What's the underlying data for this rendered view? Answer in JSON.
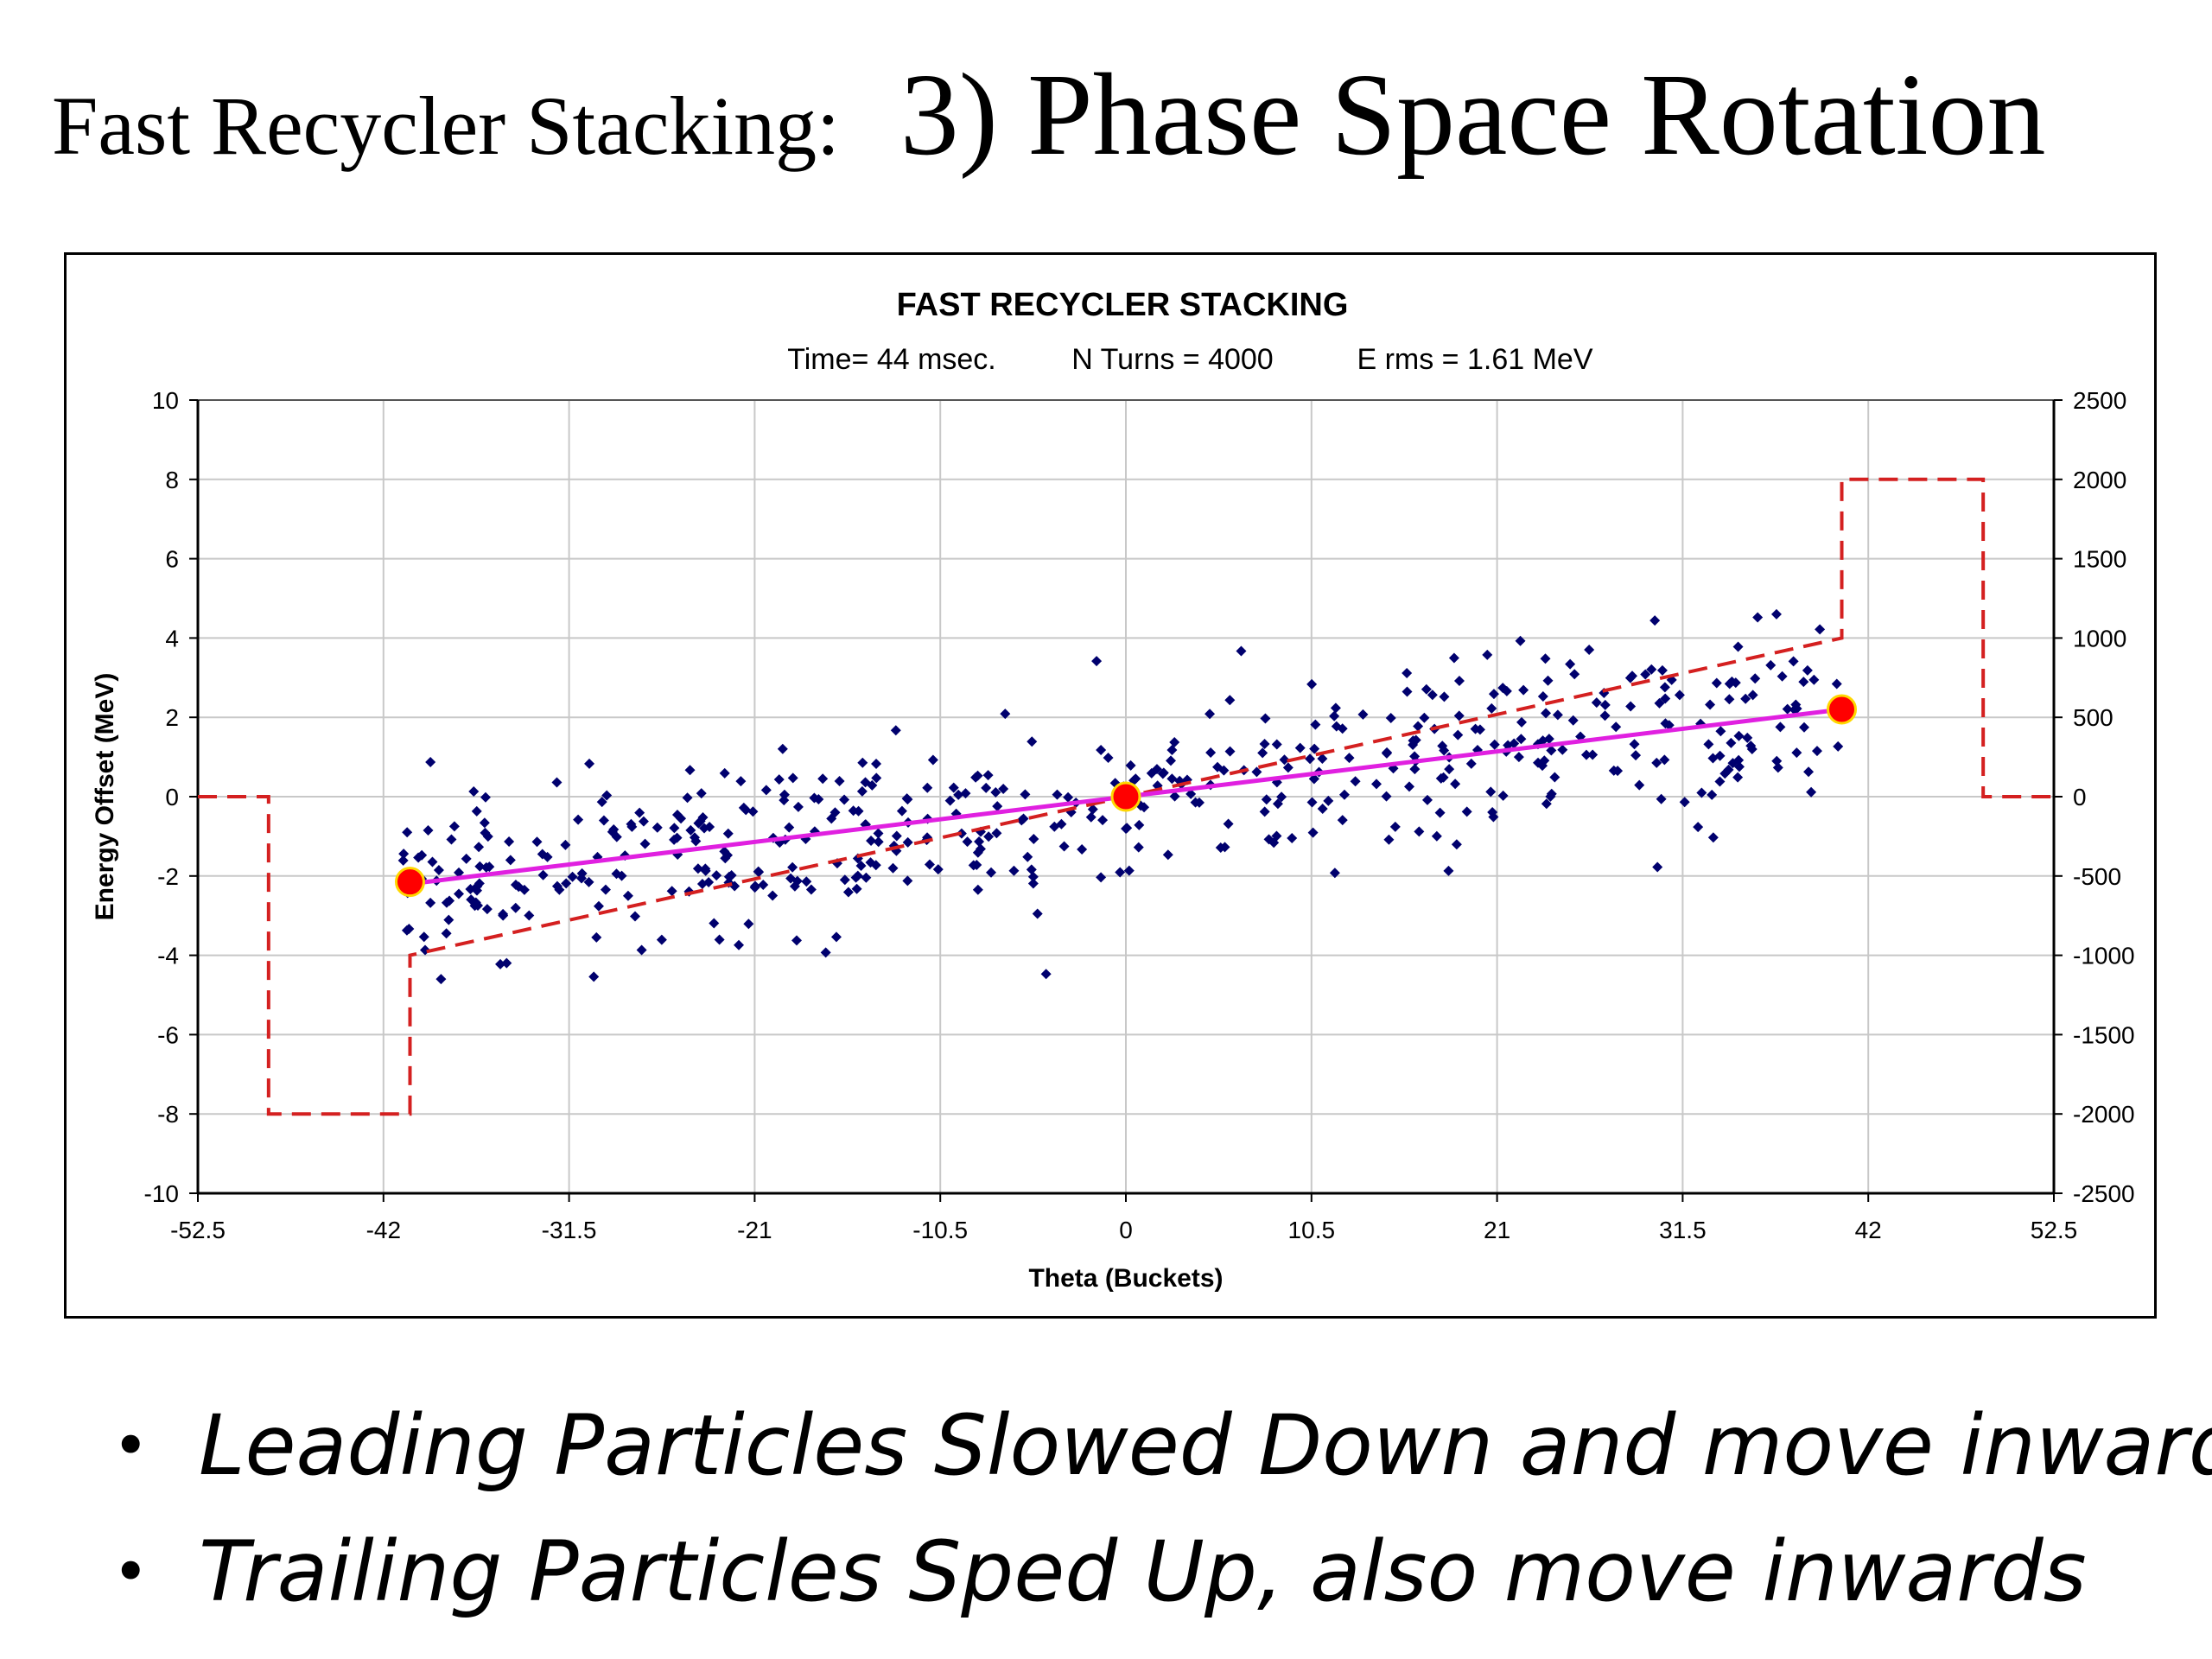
{
  "slide": {
    "title_prefix": "Fast Recycler Stacking:",
    "title_main": "3)  Phase Space Rotation",
    "bullets": [
      "Leading Particles Slowed Down and move inwards",
      "Trailing Particles Sped Up, also move inwards"
    ],
    "bullet_symbol": "•"
  },
  "chart_data": {
    "type": "scatter",
    "title": "FAST RECYCLER STACKING",
    "subtitle_parts": [
      "Time= 44 msec.",
      "N Turns = 4000",
      "E rms = 1.61 MeV"
    ],
    "xlabel": "Theta (Buckets)",
    "ylabel": "Energy Offset (MeV)",
    "xlim": [
      -52.5,
      52.5
    ],
    "ylim": [
      -10,
      10
    ],
    "y2lim": [
      -2500,
      2500
    ],
    "x_ticks": [
      "-52.5",
      "-42",
      "-31.5",
      "-21",
      "-10.5",
      "0",
      "10.5",
      "21",
      "31.5",
      "42",
      "52.5"
    ],
    "y_ticks": [
      "10",
      "8",
      "6",
      "4",
      "2",
      "0",
      "-2",
      "-4",
      "-6",
      "-8",
      "-10"
    ],
    "y2_ticks": [
      "2500",
      "2000",
      "1500",
      "1000",
      "500",
      "0",
      "-500",
      "-1000",
      "-1500",
      "-2000",
      "-2500"
    ],
    "grid": true,
    "legend": "none",
    "colors": {
      "particles": "#00006e",
      "fit_line": "#e020e0",
      "rf_voltage": "#d42020",
      "markers": "#ff0000",
      "marker_edge": "#ffd700"
    },
    "series": [
      {
        "kind": "rf_voltage_step",
        "axis": "y2",
        "x": [
          -52.5,
          -48.5,
          -48.5,
          -40.5,
          -40.5,
          40.5,
          40.5,
          48.5,
          48.5,
          52.5
        ],
        "y": [
          0,
          0,
          -2000,
          -2000,
          -1000,
          1000,
          2000,
          2000,
          0,
          0
        ]
      },
      {
        "kind": "fit_line",
        "axis": "y",
        "x": [
          -40.5,
          40.5
        ],
        "y": [
          -2.2,
          2.2
        ]
      },
      {
        "kind": "reference_points",
        "axis": "y",
        "x": [
          -40.5,
          0,
          40.5
        ],
        "y": [
          -2.15,
          0,
          2.2
        ]
      },
      {
        "kind": "particles",
        "axis": "y",
        "count": 520,
        "x_range": [
          -41,
          41
        ],
        "slope_mev_per_bucket": 0.054,
        "spread_rms_mev": 1.1
      }
    ]
  }
}
